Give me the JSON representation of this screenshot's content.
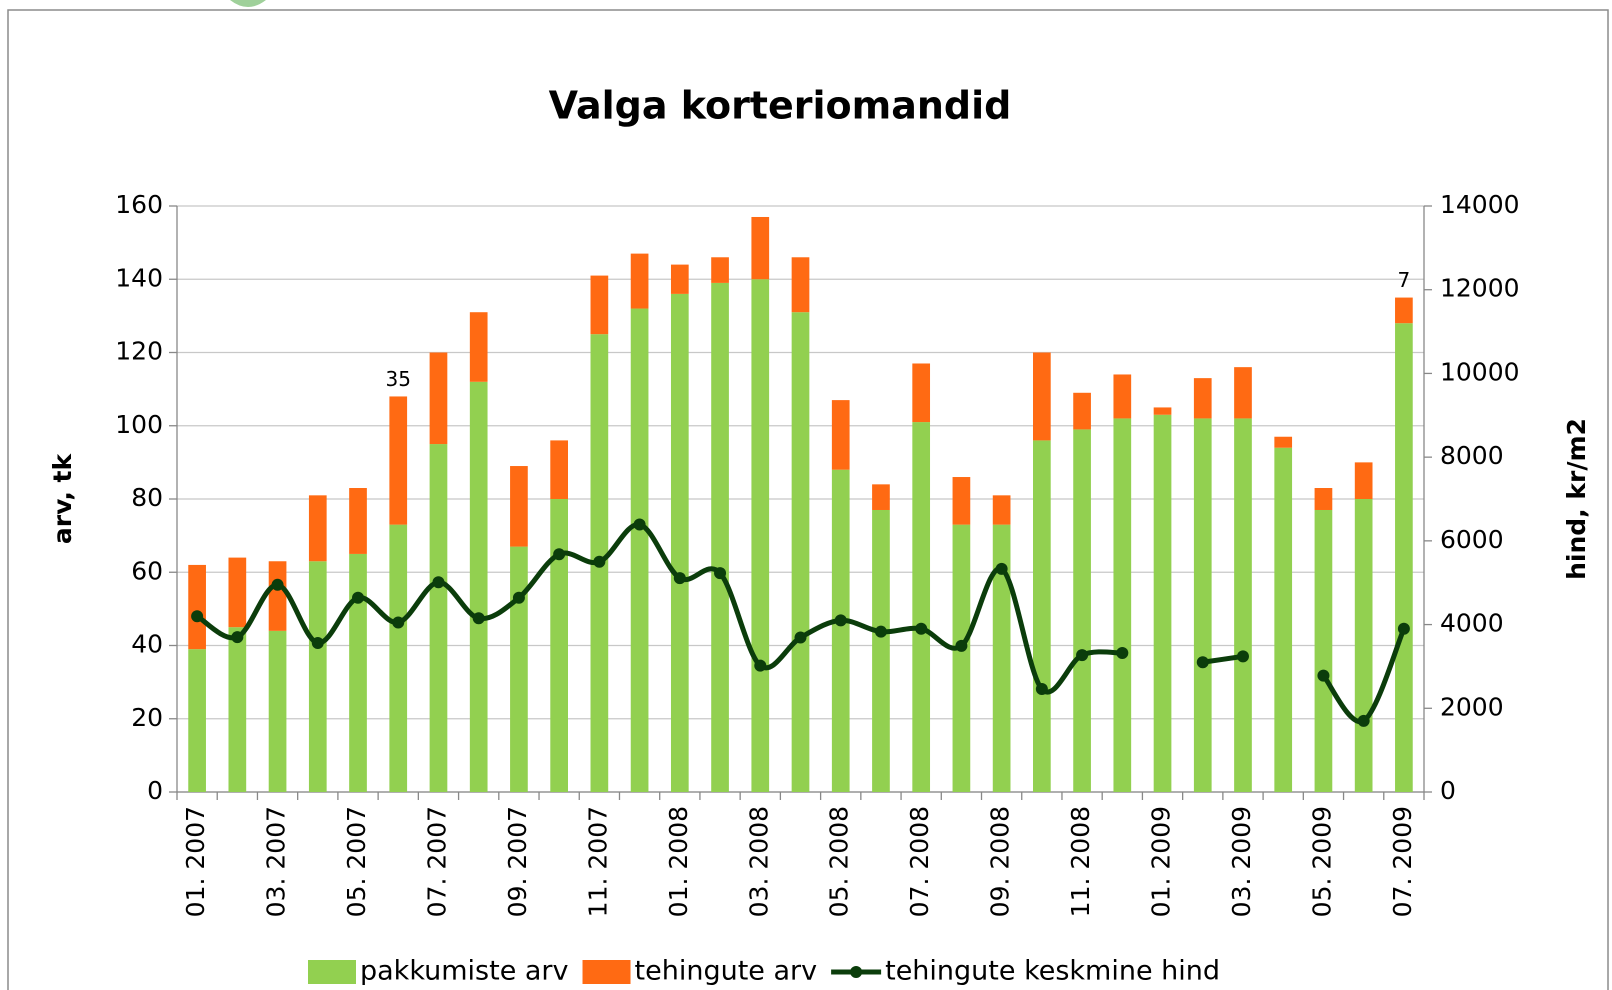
{
  "chart_data": {
    "type": "bar-line",
    "title": "Valga korteriomandid",
    "y_label": "arv, tk",
    "y2_label": "hind, kr/m2",
    "categories": [
      "01. 2007",
      null,
      "03. 2007",
      null,
      "05. 2007",
      null,
      "07. 2007",
      null,
      "09. 2007",
      null,
      "11. 2007",
      null,
      "01. 2008",
      null,
      "03. 2008",
      null,
      "05. 2008",
      null,
      "07. 2008",
      null,
      "09. 2008",
      null,
      "11. 2008",
      null,
      "01. 2009",
      null,
      "03. 2009",
      null,
      "05. 2009",
      null,
      "07. 2009"
    ],
    "series": [
      {
        "name": "pakkumiste arv",
        "type": "bar",
        "color": "#92d050",
        "values": [
          39,
          45,
          44,
          63,
          65,
          73,
          95,
          112,
          67,
          80,
          125,
          132,
          136,
          139,
          140,
          131,
          88,
          77,
          101,
          73,
          73,
          96,
          99,
          102,
          103,
          102,
          102,
          94,
          77,
          80,
          128
        ]
      },
      {
        "name": "tehingute arv",
        "type": "bar",
        "color": "#ff6a13",
        "values": [
          23,
          19,
          19,
          18,
          18,
          35,
          25,
          19,
          22,
          16,
          16,
          15,
          8,
          7,
          17,
          15,
          19,
          7,
          16,
          13,
          8,
          24,
          10,
          12,
          2,
          11,
          14,
          3,
          6,
          10,
          7
        ],
        "value_labels": [
          null,
          null,
          null,
          null,
          null,
          "35",
          null,
          null,
          null,
          null,
          null,
          null,
          null,
          null,
          null,
          null,
          null,
          null,
          null,
          null,
          null,
          null,
          null,
          null,
          null,
          null,
          null,
          null,
          null,
          null,
          "7"
        ]
      },
      {
        "name": "tehingute keskmine hind",
        "type": "line",
        "axis": "y2",
        "color": "#0b3d0b",
        "values": [
          4200,
          3700,
          4950,
          3560,
          4640,
          4050,
          5010,
          4150,
          4640,
          5680,
          5500,
          6390,
          5110,
          5230,
          3020,
          3690,
          4100,
          3830,
          3900,
          3490,
          5330,
          2460,
          3270,
          3320,
          null,
          3100,
          3240,
          null,
          2780,
          1700,
          3900
        ]
      }
    ],
    "ylim": [
      0,
      160
    ],
    "yticks": [
      0,
      20,
      40,
      60,
      80,
      100,
      120,
      140,
      160
    ],
    "y2lim": [
      0,
      14000
    ],
    "y2ticks": [
      0,
      2000,
      4000,
      6000,
      8000,
      10000,
      12000,
      14000
    ],
    "stacked": true,
    "legend": "bottom"
  }
}
